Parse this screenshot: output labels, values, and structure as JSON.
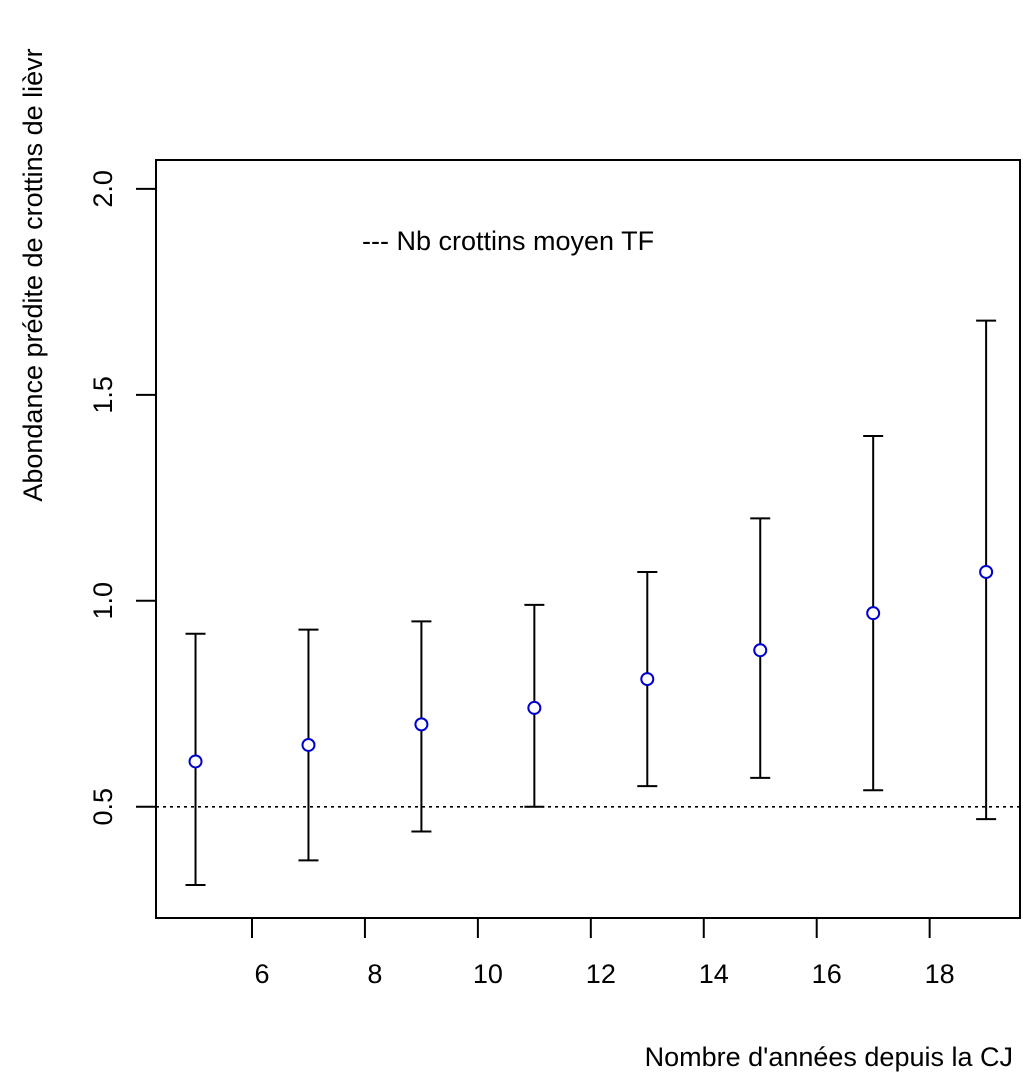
{
  "chart_data": {
    "type": "scatter",
    "title": "",
    "xlabel": "Nombre d'années depuis la CJ",
    "ylabel": "Abondance prédite de crottins de lièvr",
    "xlim": [
      4.3,
      19.6
    ],
    "ylim": [
      0.23,
      2.07
    ],
    "x_ticks": [
      6,
      8,
      10,
      12,
      14,
      16,
      18
    ],
    "x_tick_labels": [
      "6",
      "8",
      "10",
      "12",
      "14",
      "16",
      "18"
    ],
    "y_ticks": [
      0.5,
      1.0,
      1.5,
      2.0
    ],
    "y_tick_labels": [
      "0.5",
      "1.0",
      "1.5",
      "2.0"
    ],
    "grid": false,
    "point_color": "#0000cc",
    "errorbar_color": "#000000",
    "series": [
      {
        "x": [
          5,
          7,
          9,
          11,
          13,
          15,
          17,
          19
        ],
        "y": [
          0.61,
          0.65,
          0.7,
          0.74,
          0.81,
          0.88,
          0.97,
          1.07
        ],
        "lower": [
          0.31,
          0.37,
          0.44,
          0.5,
          0.55,
          0.57,
          0.54,
          0.47
        ],
        "upper": [
          0.92,
          0.93,
          0.95,
          0.99,
          1.07,
          1.2,
          1.4,
          1.68
        ]
      }
    ],
    "reference_line": {
      "y": 0.5,
      "style": "dotted",
      "label": "--- Nb crottins moyen TF"
    }
  }
}
